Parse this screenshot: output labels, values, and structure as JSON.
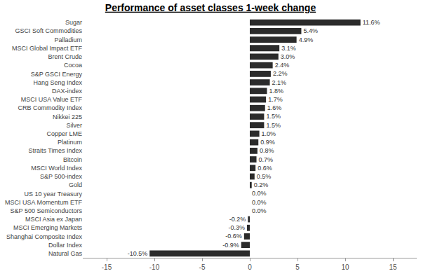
{
  "chart_data": {
    "type": "bar",
    "title": "Performance of asset classes 1-week change",
    "orientation": "horizontal",
    "categories": [
      "Sugar",
      "GSCI Soft Commodities",
      "Palladium",
      "MSCI Global Impact ETF",
      "Brent Crude",
      "Cocoa",
      "S&P GSCI Energy",
      "Hang Seng Index",
      "DAX-index",
      "MSCI USA Value ETF",
      "CRB Commodity Index",
      "Nikkei 225",
      "Silver",
      "Copper LME",
      "Platinum",
      "Straits Times Index",
      "Bitcoin",
      "MSCI World Index",
      "S&P 500-index",
      "Gold",
      "US 10 year Treasury",
      "MSCI USA Momentum ETF",
      "S&P 500 Semiconductors",
      "MSCI Asia ex Japan",
      "MSCI Emerging Markets",
      "Shanghai Composite Index",
      "Dollar Index",
      "Natural Gas"
    ],
    "values": [
      11.6,
      5.4,
      4.9,
      3.1,
      3.0,
      2.4,
      2.2,
      2.1,
      1.8,
      1.7,
      1.6,
      1.5,
      1.5,
      1.0,
      0.9,
      0.8,
      0.7,
      0.6,
      0.5,
      0.2,
      0.0,
      0.0,
      0.0,
      -0.2,
      -0.3,
      -0.6,
      -0.9,
      -10.5
    ],
    "value_labels": [
      "11.6%",
      "5.4%",
      "4.9%",
      "3.1%",
      "3.0%",
      "2.4%",
      "2.2%",
      "2.1%",
      "1.8%",
      "1.7%",
      "1.6%",
      "1.5%",
      "1.5%",
      "1.0%",
      "0.9%",
      "0.8%",
      "0.7%",
      "0.6%",
      "0.5%",
      "0.2%",
      "0.0%",
      "0.0%",
      "0.0%",
      "-0.2%",
      "-0.3%",
      "-0.6%",
      "-0.9%",
      "-10.5%"
    ],
    "data_labels": true,
    "color": "#2b2b2b",
    "xlim": [
      -17.5,
      17.5
    ],
    "xticks": [
      -15,
      -10,
      -5,
      0,
      5,
      10,
      15
    ],
    "grid": false
  }
}
